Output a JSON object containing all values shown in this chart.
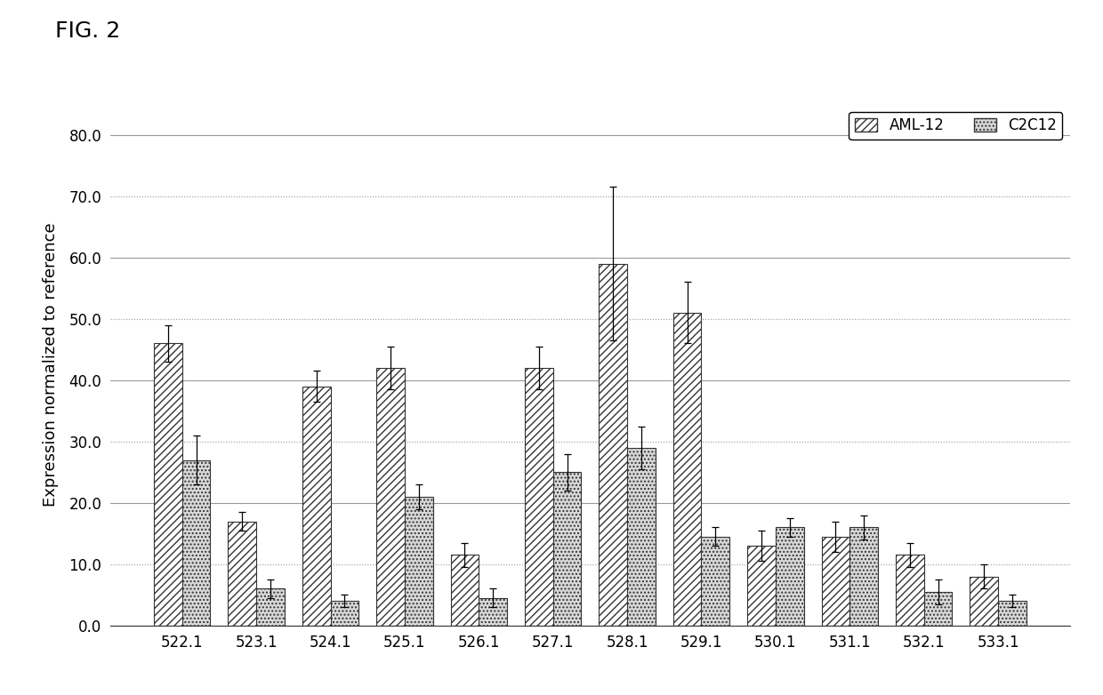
{
  "categories": [
    "522.1",
    "523.1",
    "524.1",
    "525.1",
    "526.1",
    "527.1",
    "528.1",
    "529.1",
    "530.1",
    "531.1",
    "532.1",
    "533.1"
  ],
  "aml12_values": [
    46.0,
    17.0,
    39.0,
    42.0,
    11.5,
    42.0,
    59.0,
    51.0,
    13.0,
    14.5,
    11.5,
    8.0
  ],
  "c2c12_values": [
    27.0,
    6.0,
    4.0,
    21.0,
    4.5,
    25.0,
    29.0,
    14.5,
    16.0,
    16.0,
    5.5,
    4.0
  ],
  "aml12_errors": [
    3.0,
    1.5,
    2.5,
    3.5,
    2.0,
    3.5,
    12.5,
    5.0,
    2.5,
    2.5,
    2.0,
    2.0
  ],
  "c2c12_errors": [
    4.0,
    1.5,
    1.0,
    2.0,
    1.5,
    3.0,
    3.5,
    1.5,
    1.5,
    2.0,
    2.0,
    1.0
  ],
  "ylabel": "Expression normalized to reference",
  "ylim": [
    0.0,
    85.0
  ],
  "yticks": [
    0.0,
    10.0,
    20.0,
    30.0,
    40.0,
    50.0,
    60.0,
    70.0,
    80.0
  ],
  "aml12_color": "#ffffff",
  "c2c12_color": "#d8d8d8",
  "aml12_hatch": "////",
  "c2c12_hatch": "....",
  "bar_width": 0.38,
  "legend_labels": [
    "AML-12",
    "C2C12"
  ],
  "background_color": "#ffffff",
  "fig_label": "FIG. 2",
  "grid_color": "#999999",
  "tick_fontsize": 12,
  "label_fontsize": 13
}
